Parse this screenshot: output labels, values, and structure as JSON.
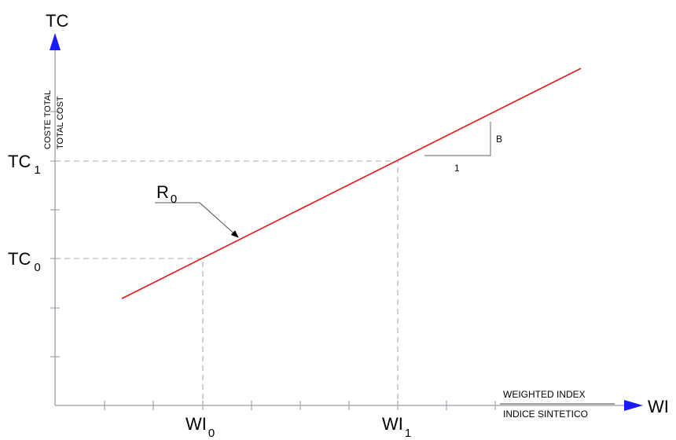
{
  "y_axis": {
    "symbol": "TC",
    "caption_es": "COSTE TOTAL",
    "caption_en": "TOTAL COST",
    "level_1": {
      "base": "TC",
      "sub": "1"
    },
    "level_0": {
      "base": "TC",
      "sub": "0"
    }
  },
  "x_axis": {
    "symbol": "WI",
    "caption_en": "WEIGHTED INDEX",
    "caption_es": "INDICE SINTETICO",
    "level_0": {
      "base": "WI",
      "sub": "0"
    },
    "level_1": {
      "base": "WI",
      "sub": "1"
    }
  },
  "line_label": {
    "base": "R",
    "sub": "0"
  },
  "slope_triangle": {
    "rise_label": "B",
    "run_label": "1"
  },
  "colors": {
    "line": "#e02020",
    "arrow": "#1a1aff",
    "axis": "#9a9aa8"
  }
}
